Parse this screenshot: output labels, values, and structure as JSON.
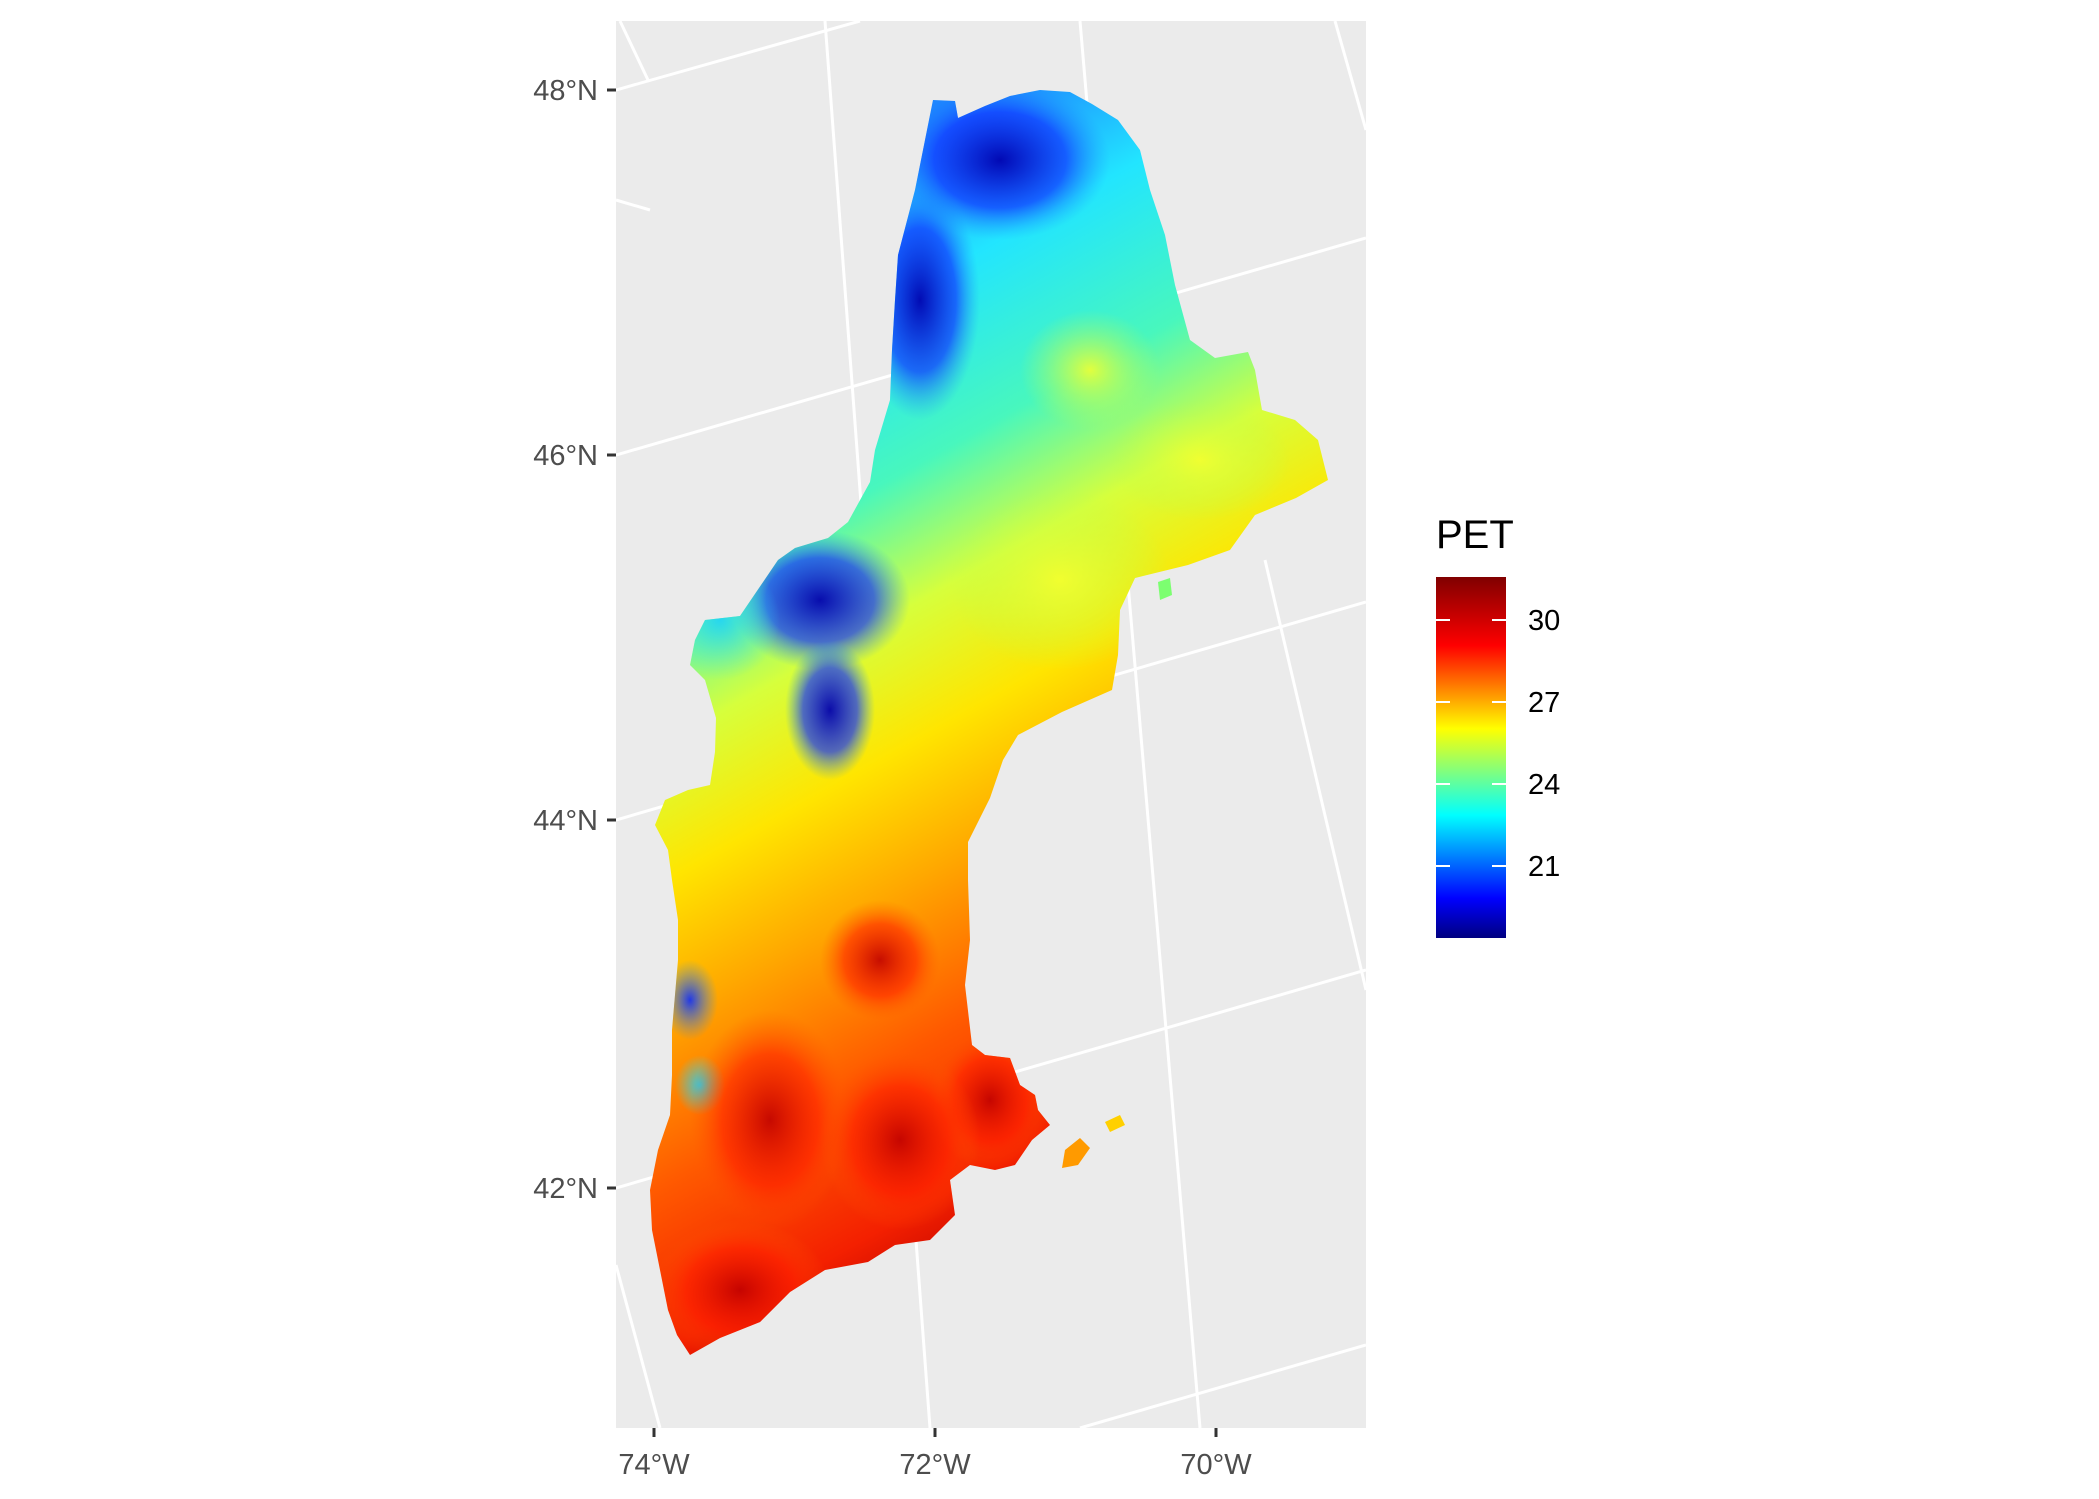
{
  "map": {
    "region": "New England",
    "grid_color": "#ffffff",
    "panel_color": "#ebebeb",
    "latitude_labels": [
      "48°N",
      "46°N",
      "44°N",
      "42°N"
    ],
    "longitude_labels": [
      "74°W",
      "72°W",
      "70°W"
    ]
  },
  "legend": {
    "title": "PET",
    "labels": [
      "30",
      "27",
      "24",
      "21"
    ],
    "colors": [
      "#800000",
      "#ff0000",
      "#ffff00",
      "#00ffff",
      "#0000ff",
      "#000080"
    ]
  }
}
